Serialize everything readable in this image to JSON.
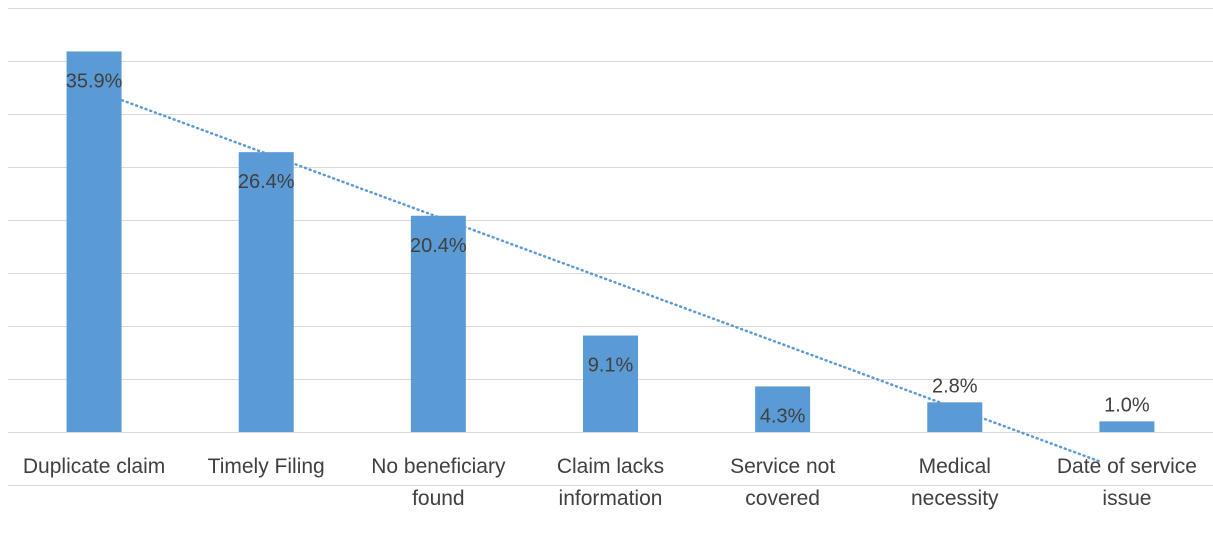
{
  "chart_data": {
    "type": "bar",
    "title": "",
    "xlabel": "",
    "ylabel": "",
    "categories": [
      [
        "Duplicate claim"
      ],
      [
        "Timely Filing"
      ],
      [
        "No beneficiary",
        "found"
      ],
      [
        "Claim lacks",
        "information"
      ],
      [
        "Service not",
        "covered"
      ],
      [
        "Medical",
        "necessity"
      ],
      [
        "Date of service",
        "issue"
      ]
    ],
    "values": [
      35.9,
      26.4,
      20.4,
      9.1,
      4.3,
      2.8,
      1.0
    ],
    "data_labels": [
      "35.9%",
      "26.4%",
      "20.4%",
      "9.1%",
      "4.3%",
      "2.8%",
      "1.0%"
    ],
    "ylim": [
      0,
      40
    ],
    "y_gridline_step": 5,
    "y_tick_labels_shown": false,
    "grid": true,
    "legend": "none",
    "trendline": {
      "type": "linear",
      "style": "dotted"
    },
    "colors": {
      "bar": "#5b9bd5",
      "trendline": "#5b9bd5",
      "grid": "#d9d9d9",
      "text": "#404040"
    }
  }
}
